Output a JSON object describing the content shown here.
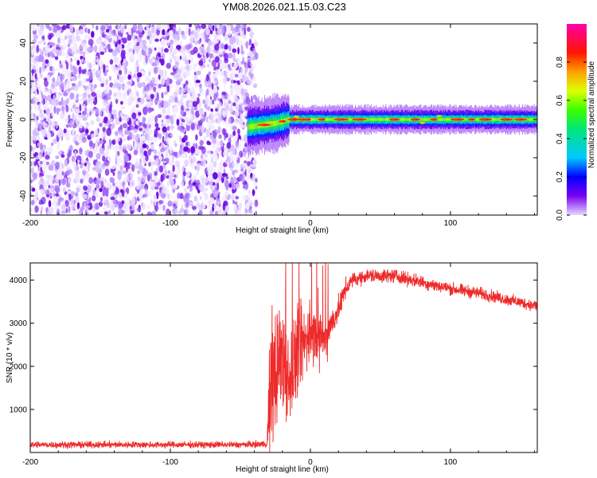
{
  "figure": {
    "title": "YM08.2026.021.15.03.C23"
  },
  "chart_data": [
    {
      "type": "heatmap",
      "xlabel": "Height of straight line (km)",
      "ylabel": "Frequency (Hz)",
      "xlim": [
        -200,
        162
      ],
      "ylim": [
        -50,
        50
      ],
      "x_ticks": [
        -200,
        -100,
        0,
        100
      ],
      "x_tick_labels": [
        "-200",
        "-100",
        "0",
        "100"
      ],
      "y_ticks": [
        -40,
        -20,
        0,
        20,
        40
      ],
      "y_tick_labels": [
        "-40",
        "-20",
        "0",
        "20",
        "40"
      ],
      "colorbar": {
        "label": "Normalized spectral amplitude",
        "range": [
          0,
          1
        ],
        "ticks": [
          0,
          0.2,
          0.4,
          0.6,
          0.8
        ],
        "tick_labels": [
          "0.0",
          "0.2",
          "0.4",
          "0.6",
          "0.8"
        ],
        "colormap": "rainbow (violet → blue → cyan → green → yellow → orange → red → magenta)"
      },
      "noise_region": {
        "x_range": [
          -200,
          -42
        ],
        "y_range": [
          -50,
          50
        ],
        "amplitude": 0.1
      },
      "signal_track": {
        "description": "narrow band near 0 Hz",
        "points": [
          {
            "x": -45,
            "y": -4
          },
          {
            "x": -35,
            "y": -3
          },
          {
            "x": -25,
            "y": -2
          },
          {
            "x": -15,
            "y": 0
          },
          {
            "x": 0,
            "y": 0
          },
          {
            "x": 50,
            "y": 0
          },
          {
            "x": 100,
            "y": 0
          },
          {
            "x": 162,
            "y": 0
          }
        ]
      }
    },
    {
      "type": "line",
      "xlabel": "Height of straight line (km)",
      "ylabel": "SNR (10 * v/v)",
      "xlim": [
        -200,
        162
      ],
      "ylim": [
        0,
        4400
      ],
      "x_ticks": [
        -200,
        -100,
        0,
        100
      ],
      "x_tick_labels": [
        "-200",
        "-100",
        "0",
        "100"
      ],
      "y_ticks": [
        1000,
        2000,
        3000,
        4000
      ],
      "y_tick_labels": [
        "1000",
        "2000",
        "3000",
        "4000"
      ],
      "color": "#ee2a2a",
      "envelope": {
        "x": [
          -200,
          -150,
          -100,
          -50,
          -31,
          -26,
          -22,
          -18,
          -14,
          -10,
          -5,
          0,
          5,
          10,
          15,
          20,
          25,
          30,
          40,
          60,
          80,
          100,
          120,
          140,
          162
        ],
        "y": [
          180,
          180,
          180,
          180,
          200,
          1900,
          2200,
          2000,
          1700,
          2300,
          2500,
          2800,
          2700,
          2600,
          3000,
          3300,
          3800,
          4000,
          4100,
          4100,
          3950,
          3800,
          3700,
          3550,
          3400
        ]
      },
      "noise_amplitude": [
        [
          -200,
          70
        ],
        [
          -31,
          70
        ],
        [
          -30,
          1400
        ],
        [
          -10,
          900
        ],
        [
          10,
          400
        ],
        [
          30,
          150
        ],
        [
          162,
          120
        ]
      ]
    }
  ]
}
